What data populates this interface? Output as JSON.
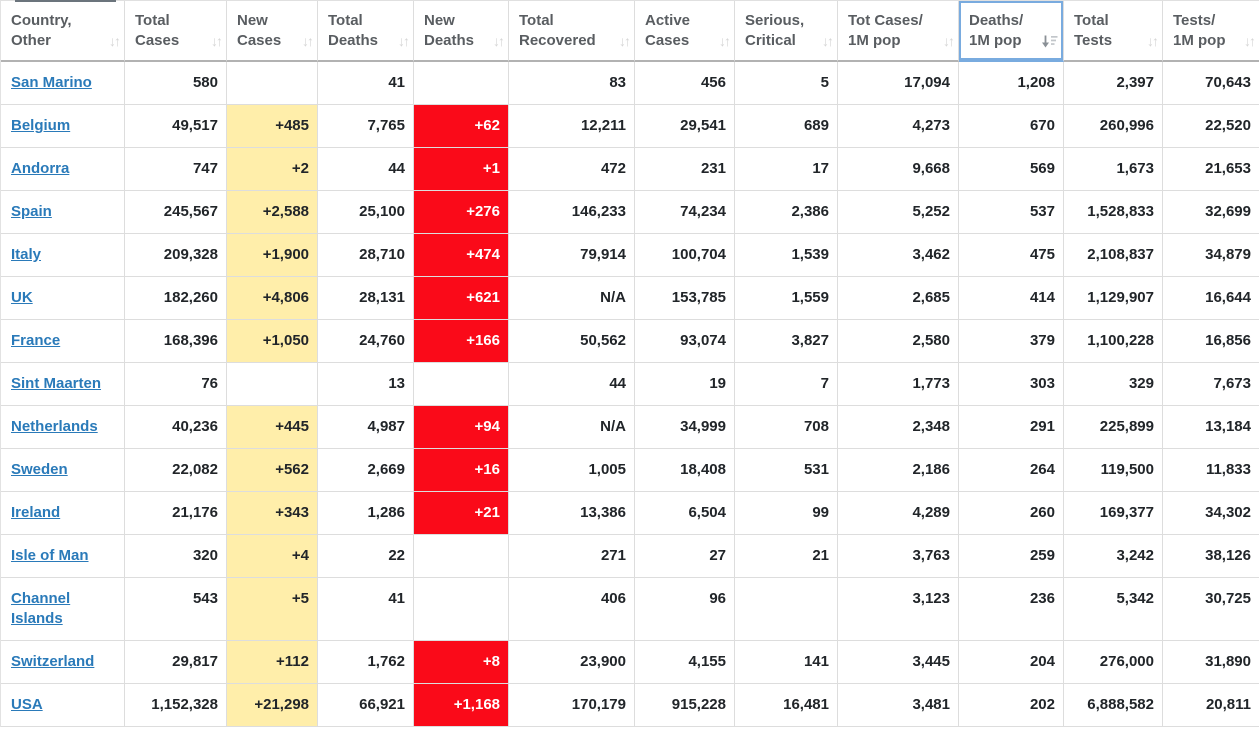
{
  "table": {
    "sort_glyph": "↓↑",
    "colors": {
      "new_cases_bg": "#FFEEAA",
      "new_deaths_bg": "#FA0A19",
      "new_deaths_text": "#FFFFFF",
      "link_color": "#2A7AB9",
      "highlight_border": "#79ABDF",
      "header_text": "#595D61"
    },
    "columns": [
      {
        "key": "country",
        "label": "Country,\nOther",
        "sort": "inactive",
        "highlighted": false
      },
      {
        "key": "total_cases",
        "label": "Total\nCases",
        "sort": "inactive",
        "highlighted": false
      },
      {
        "key": "new_cases",
        "label": "New\nCases",
        "sort": "inactive",
        "highlighted": false
      },
      {
        "key": "total_deaths",
        "label": "Total\nDeaths",
        "sort": "inactive",
        "highlighted": false
      },
      {
        "key": "new_deaths",
        "label": "New\nDeaths",
        "sort": "inactive",
        "highlighted": false
      },
      {
        "key": "total_recovered",
        "label": "Total\nRecovered",
        "sort": "inactive",
        "highlighted": false
      },
      {
        "key": "active_cases",
        "label": "Active\nCases",
        "sort": "inactive",
        "highlighted": false
      },
      {
        "key": "serious_critical",
        "label": "Serious,\nCritical",
        "sort": "inactive",
        "highlighted": false
      },
      {
        "key": "cases_per_1m",
        "label": "Tot Cases/\n1M pop",
        "sort": "inactive",
        "highlighted": false
      },
      {
        "key": "deaths_per_1m",
        "label": "Deaths/\n1M pop",
        "sort": "desc",
        "highlighted": true
      },
      {
        "key": "total_tests",
        "label": "Total\nTests",
        "sort": "inactive",
        "highlighted": false
      },
      {
        "key": "tests_per_1m",
        "label": "Tests/\n1M pop",
        "sort": "inactive",
        "highlighted": false
      }
    ],
    "rows": [
      {
        "country": "San Marino",
        "total_cases": "580",
        "new_cases": "",
        "total_deaths": "41",
        "new_deaths": "",
        "total_recovered": "83",
        "active_cases": "456",
        "serious_critical": "5",
        "cases_per_1m": "17,094",
        "deaths_per_1m": "1,208",
        "total_tests": "2,397",
        "tests_per_1m": "70,643"
      },
      {
        "country": "Belgium",
        "total_cases": "49,517",
        "new_cases": "+485",
        "total_deaths": "7,765",
        "new_deaths": "+62",
        "total_recovered": "12,211",
        "active_cases": "29,541",
        "serious_critical": "689",
        "cases_per_1m": "4,273",
        "deaths_per_1m": "670",
        "total_tests": "260,996",
        "tests_per_1m": "22,520"
      },
      {
        "country": "Andorra",
        "total_cases": "747",
        "new_cases": "+2",
        "total_deaths": "44",
        "new_deaths": "+1",
        "total_recovered": "472",
        "active_cases": "231",
        "serious_critical": "17",
        "cases_per_1m": "9,668",
        "deaths_per_1m": "569",
        "total_tests": "1,673",
        "tests_per_1m": "21,653"
      },
      {
        "country": "Spain",
        "total_cases": "245,567",
        "new_cases": "+2,588",
        "total_deaths": "25,100",
        "new_deaths": "+276",
        "total_recovered": "146,233",
        "active_cases": "74,234",
        "serious_critical": "2,386",
        "cases_per_1m": "5,252",
        "deaths_per_1m": "537",
        "total_tests": "1,528,833",
        "tests_per_1m": "32,699"
      },
      {
        "country": "Italy",
        "total_cases": "209,328",
        "new_cases": "+1,900",
        "total_deaths": "28,710",
        "new_deaths": "+474",
        "total_recovered": "79,914",
        "active_cases": "100,704",
        "serious_critical": "1,539",
        "cases_per_1m": "3,462",
        "deaths_per_1m": "475",
        "total_tests": "2,108,837",
        "tests_per_1m": "34,879"
      },
      {
        "country": "UK",
        "total_cases": "182,260",
        "new_cases": "+4,806",
        "total_deaths": "28,131",
        "new_deaths": "+621",
        "total_recovered": "N/A",
        "active_cases": "153,785",
        "serious_critical": "1,559",
        "cases_per_1m": "2,685",
        "deaths_per_1m": "414",
        "total_tests": "1,129,907",
        "tests_per_1m": "16,644"
      },
      {
        "country": "France",
        "total_cases": "168,396",
        "new_cases": "+1,050",
        "total_deaths": "24,760",
        "new_deaths": "+166",
        "total_recovered": "50,562",
        "active_cases": "93,074",
        "serious_critical": "3,827",
        "cases_per_1m": "2,580",
        "deaths_per_1m": "379",
        "total_tests": "1,100,228",
        "tests_per_1m": "16,856"
      },
      {
        "country": "Sint Maarten",
        "total_cases": "76",
        "new_cases": "",
        "total_deaths": "13",
        "new_deaths": "",
        "total_recovered": "44",
        "active_cases": "19",
        "serious_critical": "7",
        "cases_per_1m": "1,773",
        "deaths_per_1m": "303",
        "total_tests": "329",
        "tests_per_1m": "7,673"
      },
      {
        "country": "Netherlands",
        "total_cases": "40,236",
        "new_cases": "+445",
        "total_deaths": "4,987",
        "new_deaths": "+94",
        "total_recovered": "N/A",
        "active_cases": "34,999",
        "serious_critical": "708",
        "cases_per_1m": "2,348",
        "deaths_per_1m": "291",
        "total_tests": "225,899",
        "tests_per_1m": "13,184"
      },
      {
        "country": "Sweden",
        "total_cases": "22,082",
        "new_cases": "+562",
        "total_deaths": "2,669",
        "new_deaths": "+16",
        "total_recovered": "1,005",
        "active_cases": "18,408",
        "serious_critical": "531",
        "cases_per_1m": "2,186",
        "deaths_per_1m": "264",
        "total_tests": "119,500",
        "tests_per_1m": "11,833"
      },
      {
        "country": "Ireland",
        "total_cases": "21,176",
        "new_cases": "+343",
        "total_deaths": "1,286",
        "new_deaths": "+21",
        "total_recovered": "13,386",
        "active_cases": "6,504",
        "serious_critical": "99",
        "cases_per_1m": "4,289",
        "deaths_per_1m": "260",
        "total_tests": "169,377",
        "tests_per_1m": "34,302"
      },
      {
        "country": "Isle of Man",
        "total_cases": "320",
        "new_cases": "+4",
        "total_deaths": "22",
        "new_deaths": "",
        "total_recovered": "271",
        "active_cases": "27",
        "serious_critical": "21",
        "cases_per_1m": "3,763",
        "deaths_per_1m": "259",
        "total_tests": "3,242",
        "tests_per_1m": "38,126"
      },
      {
        "country": "Channel Islands",
        "total_cases": "543",
        "new_cases": "+5",
        "total_deaths": "41",
        "new_deaths": "",
        "total_recovered": "406",
        "active_cases": "96",
        "serious_critical": "",
        "cases_per_1m": "3,123",
        "deaths_per_1m": "236",
        "total_tests": "5,342",
        "tests_per_1m": "30,725"
      },
      {
        "country": "Switzerland",
        "total_cases": "29,817",
        "new_cases": "+112",
        "total_deaths": "1,762",
        "new_deaths": "+8",
        "total_recovered": "23,900",
        "active_cases": "4,155",
        "serious_critical": "141",
        "cases_per_1m": "3,445",
        "deaths_per_1m": "204",
        "total_tests": "276,000",
        "tests_per_1m": "31,890"
      },
      {
        "country": "USA",
        "total_cases": "1,152,328",
        "new_cases": "+21,298",
        "total_deaths": "66,921",
        "new_deaths": "+1,168",
        "total_recovered": "170,179",
        "active_cases": "915,228",
        "serious_critical": "16,481",
        "cases_per_1m": "3,481",
        "deaths_per_1m": "202",
        "total_tests": "6,888,582",
        "tests_per_1m": "20,811"
      }
    ]
  }
}
